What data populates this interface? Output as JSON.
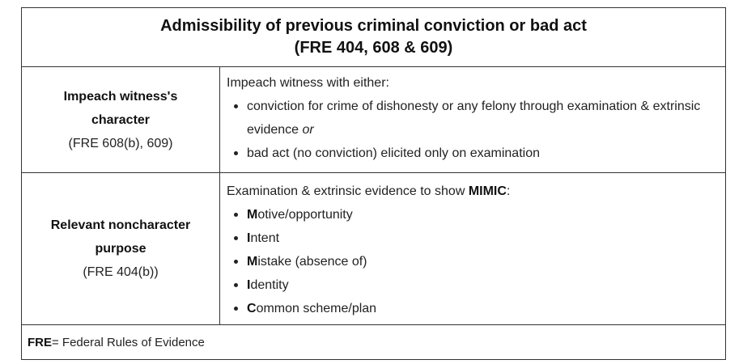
{
  "title": {
    "line1": "Admissibility of previous criminal conviction or bad act",
    "line2": "(FRE 404, 608 & 609)"
  },
  "rows": [
    {
      "heading_line1": "Impeach witness's",
      "heading_line2": "character",
      "reference": "(FRE 608(b), 609)",
      "intro": "Impeach witness with either:",
      "bullet1": "conviction for crime of dishonesty or any felony through examination & extrinsic evidence ",
      "bullet1_emphasis": "or",
      "bullet2": "bad act (no conviction) elicited only on examination"
    },
    {
      "heading_line1": "Relevant noncharacter",
      "heading_line2": "purpose",
      "reference": "(FRE 404(b))",
      "intro": "Examination & extrinsic evidence to show ",
      "intro_bold": "MIMIC",
      "intro_tail": ":",
      "items": [
        {
          "initial": "M",
          "rest": "otive/opportunity"
        },
        {
          "initial": "I",
          "rest": "ntent"
        },
        {
          "initial": "M",
          "rest": "istake (absence of)"
        },
        {
          "initial": "I",
          "rest": "dentity"
        },
        {
          "initial": "C",
          "rest": "ommon scheme/plan"
        }
      ]
    }
  ],
  "footer": {
    "abbr": "FRE",
    "definition": " = Federal Rules of Evidence"
  }
}
